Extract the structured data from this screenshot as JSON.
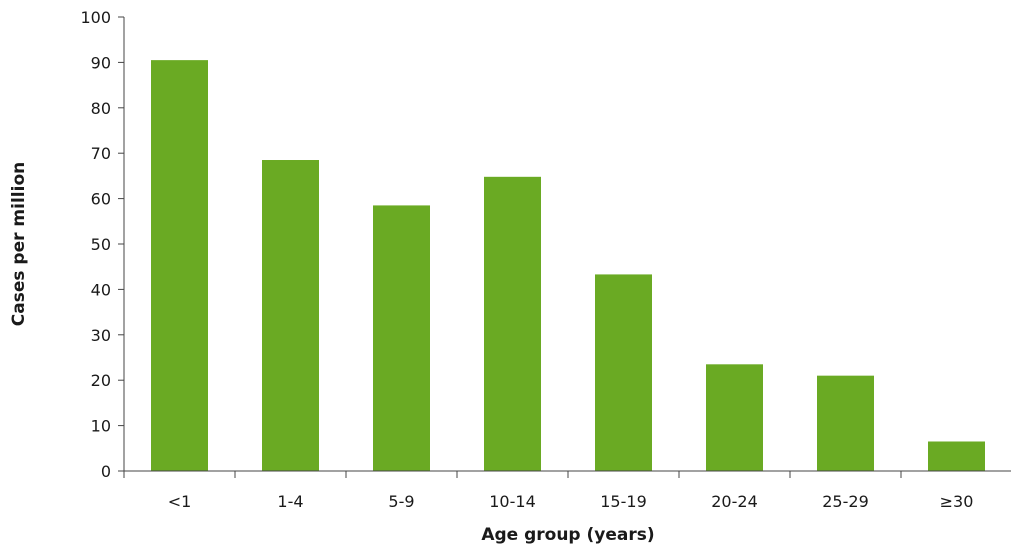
{
  "chart_data": {
    "type": "bar",
    "title": "",
    "xlabel": "Age group (years)",
    "ylabel": "Cases per million",
    "categories": [
      "<1",
      "1-4",
      "5-9",
      "10-14",
      "15-19",
      "20-24",
      "25-29",
      "≥30"
    ],
    "series": [
      {
        "values": [
          90.5,
          68.5,
          58.5,
          64.8,
          43.3,
          23.5,
          21.0,
          6.5
        ]
      }
    ],
    "ylim": [
      0,
      100
    ],
    "yticks": [
      0,
      10,
      20,
      30,
      40,
      50,
      60,
      70,
      80,
      90,
      100
    ],
    "grid": false,
    "legend": "none",
    "colors": {
      "bar": "#6aaa23",
      "axis": "#444444",
      "text": "#1a1a1a"
    }
  }
}
